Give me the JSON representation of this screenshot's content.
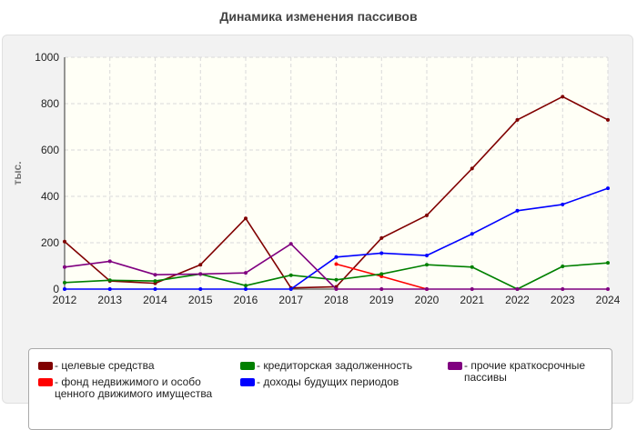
{
  "colors": {
    "series": [
      "#800000",
      "#ff0000",
      "#008000",
      "#0000ff",
      "#800080"
    ]
  },
  "chart_data": {
    "type": "line",
    "title": "Динамика изменения пассивов",
    "ylabel": "тыс.",
    "xlabel": "",
    "x": [
      2012,
      2013,
      2014,
      2015,
      2016,
      2017,
      2018,
      2019,
      2020,
      2021,
      2022,
      2023,
      2024
    ],
    "ylim": [
      0,
      1000
    ],
    "yticks": [
      0,
      200,
      400,
      600,
      800,
      1000
    ],
    "grid": true,
    "legend_position": "bottom",
    "series": [
      {
        "name": "целевые средства",
        "legend_label": "- целевые средства",
        "values": [
          205,
          35,
          25,
          105,
          305,
          5,
          10,
          220,
          318,
          520,
          730,
          830,
          730
        ]
      },
      {
        "name": "фонд недвижимого и особо ценного движимого имущества",
        "legend_label": "- фонд недвижимого и особо ценного движимого имущества",
        "values": [
          null,
          null,
          null,
          null,
          null,
          null,
          108,
          55,
          0,
          null,
          null,
          null,
          null
        ]
      },
      {
        "name": "кредиторская задолженность",
        "legend_label": "- кредиторская задолженность",
        "values": [
          28,
          38,
          35,
          65,
          15,
          60,
          40,
          65,
          105,
          95,
          0,
          98,
          113
        ]
      },
      {
        "name": "доходы будущих периодов",
        "legend_label": "- доходы будущих периодов",
        "values": [
          0,
          0,
          0,
          0,
          0,
          0,
          138,
          155,
          145,
          238,
          338,
          365,
          435
        ]
      },
      {
        "name": "прочие краткосрочные пассивы",
        "legend_label": "- прочие краткосрочные пассивы",
        "values": [
          95,
          120,
          62,
          65,
          70,
          195,
          0,
          0,
          0,
          0,
          0,
          0,
          0
        ]
      }
    ]
  }
}
